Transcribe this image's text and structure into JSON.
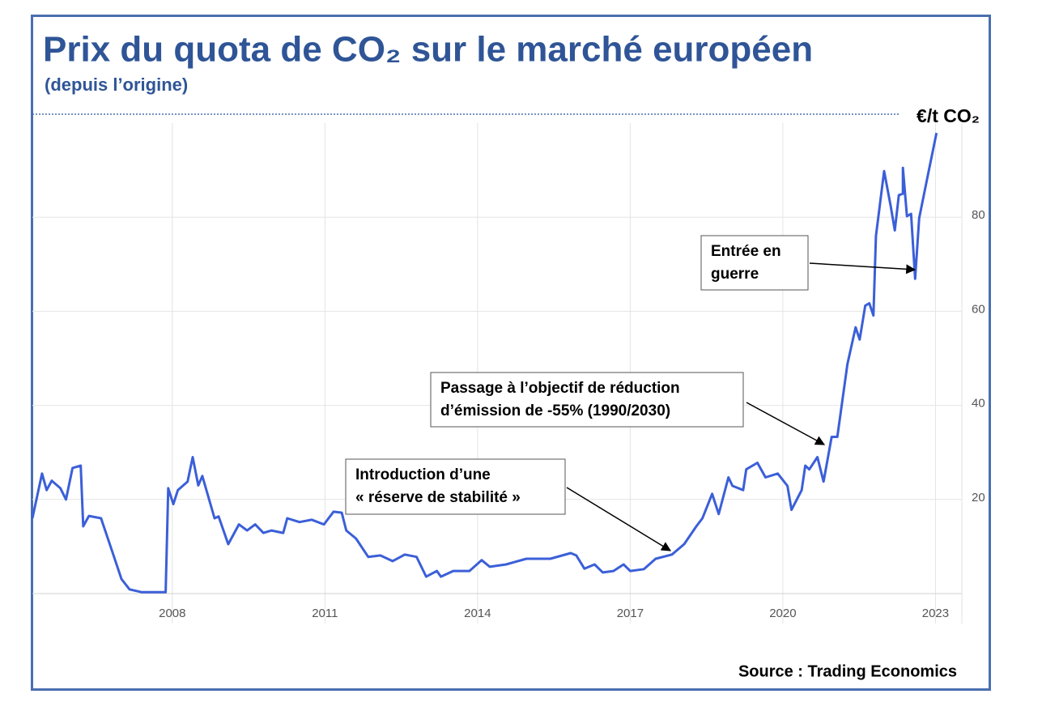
{
  "chart_data": {
    "type": "line",
    "title": "Prix du quota de CO₂ sur le marché européen",
    "subtitle": "(depuis l’origine)",
    "y_unit": "€/t CO₂",
    "source": "Source : Trading Economics",
    "xlim": [
      2005.25,
      2023.55
    ],
    "xticks": [
      2008,
      2011,
      2014,
      2017,
      2020,
      2023
    ],
    "ylim": [
      0,
      100
    ],
    "yticks": [
      20,
      40,
      60,
      80
    ],
    "grid": true,
    "series": [
      {
        "name": "Prix du quota de CO₂",
        "color": "#3b5fd8",
        "x": [
          2005.25,
          2005.44,
          2005.53,
          2005.63,
          2005.8,
          2005.91,
          2006.04,
          2006.2,
          2006.25,
          2006.36,
          2006.6,
          2006.84,
          2007.0,
          2007.16,
          2007.4,
          2007.87,
          2007.92,
          2008.02,
          2008.11,
          2008.3,
          2008.4,
          2008.51,
          2008.59,
          2008.83,
          2008.91,
          2009.1,
          2009.31,
          2009.47,
          2009.63,
          2009.79,
          2009.95,
          2010.18,
          2010.26,
          2010.5,
          2010.74,
          2010.98,
          2011.17,
          2011.33,
          2011.42,
          2011.61,
          2011.85,
          2012.09,
          2012.33,
          2012.57,
          2012.8,
          2012.99,
          2013.2,
          2013.28,
          2013.52,
          2013.84,
          2014.08,
          2014.24,
          2014.56,
          2014.96,
          2015.43,
          2015.83,
          2015.94,
          2016.1,
          2016.3,
          2016.46,
          2016.67,
          2016.87,
          2017.0,
          2017.27,
          2017.5,
          2017.82,
          2018.06,
          2018.3,
          2018.42,
          2018.61,
          2018.74,
          2018.93,
          2019.01,
          2019.22,
          2019.28,
          2019.5,
          2019.66,
          2019.9,
          2020.09,
          2020.17,
          2020.37,
          2020.44,
          2020.52,
          2020.68,
          2020.8,
          2020.96,
          2021.07,
          2021.27,
          2021.43,
          2021.51,
          2021.62,
          2021.7,
          2021.78,
          2021.83,
          2021.99,
          2022.12,
          2022.2,
          2022.28,
          2022.36,
          2022.36,
          2022.44,
          2022.52,
          2022.6,
          2022.68,
          2022.84,
          2023.02
        ],
        "values": [
          16,
          25.5,
          22,
          24,
          22.4,
          20,
          26.7,
          27.2,
          14.3,
          16.5,
          16,
          8.3,
          3.1,
          0.9,
          0.3,
          0.3,
          22.4,
          19,
          22,
          23.8,
          29,
          23,
          25,
          16,
          16.4,
          10.5,
          14.7,
          13.4,
          14.7,
          12.9,
          13.4,
          12.9,
          16,
          15.2,
          15.7,
          14.7,
          17.4,
          17.2,
          13.4,
          11.7,
          7.8,
          8.1,
          6.9,
          8.3,
          7.8,
          3.6,
          4.8,
          3.6,
          4.8,
          4.8,
          7.1,
          5.7,
          6.2,
          7.4,
          7.4,
          8.6,
          8.1,
          5.3,
          6.2,
          4.5,
          4.8,
          6.2,
          4.8,
          5.2,
          7.4,
          8.3,
          10.5,
          14.3,
          16,
          21.2,
          16.9,
          24.7,
          22.9,
          22,
          26.4,
          27.8,
          24.7,
          25.5,
          22.9,
          17.8,
          22,
          27.2,
          26.4,
          29,
          23.8,
          33.3,
          33.3,
          48.8,
          56.6,
          54,
          61.2,
          61.7,
          59.1,
          76,
          89.8,
          82.4,
          77.2,
          84.7,
          85,
          90.5,
          80.2,
          80.7,
          66.9,
          79.8,
          88.4,
          97.9
        ]
      }
    ],
    "annotations": [
      {
        "lines": [
          "Entrée en",
          "guerre"
        ]
      },
      {
        "lines": [
          "Passage à l’objectif de réduction",
          "d’émission de -55% (1990/2030)"
        ]
      },
      {
        "lines": [
          "Introduction d’une",
          "« réserve de stabilité »"
        ]
      }
    ]
  }
}
